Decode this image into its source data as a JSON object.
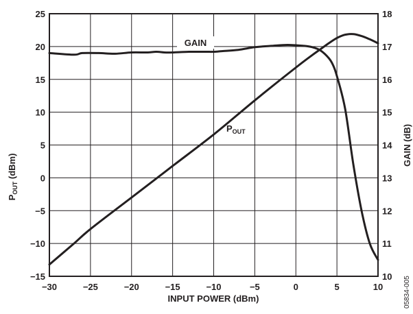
{
  "chart_data": {
    "type": "line",
    "title": "",
    "xlabel": "INPUT POWER (dBm)",
    "ylabel_left": {
      "main": "P",
      "sub": "OUT",
      "rest": " (dBm)"
    },
    "ylabel_right": "GAIN (dB)",
    "xlim": [
      -30,
      10
    ],
    "ylim_left": [
      -15,
      25
    ],
    "ylim_right": [
      10,
      18
    ],
    "x_ticks": [
      "−30",
      "−25",
      "−20",
      "−15",
      "−10",
      "−5",
      "0",
      "5",
      "10"
    ],
    "y_left_ticks": [
      "−15",
      "−10",
      "−5",
      "0",
      "5",
      "10",
      "15",
      "20",
      "25"
    ],
    "y_right_ticks": [
      "10",
      "11",
      "12",
      "13",
      "14",
      "15",
      "16",
      "17",
      "18"
    ],
    "grid": true,
    "legend": "none",
    "series": [
      {
        "name": "GAIN",
        "axis": "right",
        "x": [
          -30,
          -27,
          -26,
          -24,
          -22,
          -20,
          -18,
          -17,
          -16,
          -15,
          -13,
          -11,
          -10,
          -9,
          -7,
          -5,
          -3,
          -1,
          1,
          2,
          3,
          4,
          4.5,
          5,
          6,
          7,
          8,
          9,
          10
        ],
        "y": [
          16.8,
          16.75,
          16.8,
          16.8,
          16.78,
          16.82,
          16.82,
          16.84,
          16.82,
          16.82,
          16.84,
          16.84,
          16.84,
          16.86,
          16.9,
          16.98,
          17.02,
          17.05,
          17.02,
          16.98,
          16.88,
          16.65,
          16.45,
          16.1,
          15.1,
          13.4,
          12.0,
          11.0,
          10.5
        ]
      },
      {
        "name": "P",
        "name_sub": "OUT",
        "axis": "left",
        "x": [
          -30,
          -27,
          -25,
          -20,
          -15,
          -10,
          -5,
          0,
          2,
          3,
          4,
          5,
          6,
          7,
          8,
          9,
          10
        ],
        "y": [
          -13.2,
          -10.0,
          -7.8,
          -3.0,
          1.8,
          6.6,
          11.8,
          16.8,
          18.7,
          19.6,
          20.5,
          21.3,
          21.8,
          21.9,
          21.6,
          21.1,
          20.5
        ]
      }
    ],
    "annotations": {
      "gain_label": "GAIN",
      "pout_main": "P",
      "pout_sub": "OUT"
    },
    "figure_id": "05834-005"
  }
}
